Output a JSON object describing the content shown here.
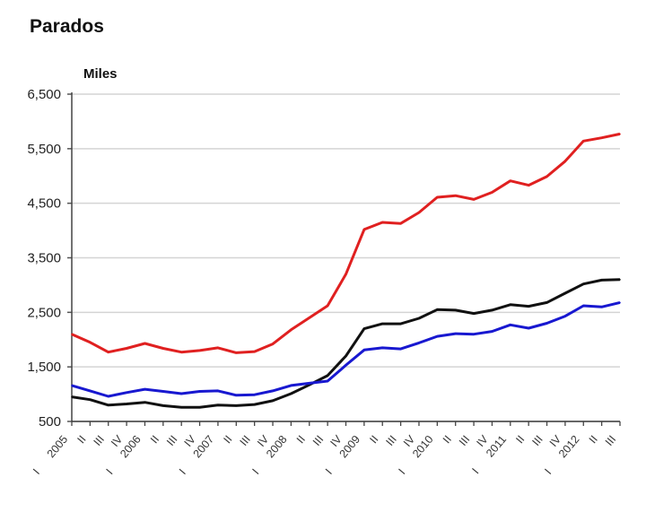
{
  "chart_data": {
    "type": "line",
    "title": "Parados",
    "ylabel": "Miles",
    "xlabel": "",
    "ylim": [
      500,
      6500
    ],
    "yticks": [
      "6,500",
      "5,500",
      "4,500",
      "3,500",
      "2,500",
      "1,500",
      "500"
    ],
    "ytick_values": [
      6500,
      5500,
      4500,
      3500,
      2500,
      1500,
      500
    ],
    "grid": true,
    "legend": "none",
    "x": [
      "I 2005",
      "II",
      "III",
      "IV",
      "I 2006",
      "II",
      "III",
      "IV",
      "I 2007",
      "II",
      "III",
      "IV",
      "I 2008",
      "II",
      "III",
      "IV",
      "I 2009",
      "II",
      "III",
      "IV",
      "I 2010",
      "II",
      "III",
      "IV",
      "I 2011",
      "II",
      "III",
      "IV",
      "I 2012",
      "II",
      "III"
    ],
    "x_labels": [
      {
        "quarter": "I",
        "year": "2005"
      },
      {
        "quarter": "II"
      },
      {
        "quarter": "III"
      },
      {
        "quarter": "IV"
      },
      {
        "quarter": "I",
        "year": "2006"
      },
      {
        "quarter": "II"
      },
      {
        "quarter": "III"
      },
      {
        "quarter": "IV"
      },
      {
        "quarter": "I",
        "year": "2007"
      },
      {
        "quarter": "II"
      },
      {
        "quarter": "III"
      },
      {
        "quarter": "IV"
      },
      {
        "quarter": "I",
        "year": "2008"
      },
      {
        "quarter": "II"
      },
      {
        "quarter": "III"
      },
      {
        "quarter": "IV"
      },
      {
        "quarter": "I",
        "year": "2009"
      },
      {
        "quarter": "II"
      },
      {
        "quarter": "III"
      },
      {
        "quarter": "IV"
      },
      {
        "quarter": "I",
        "year": "2010"
      },
      {
        "quarter": "II"
      },
      {
        "quarter": "III"
      },
      {
        "quarter": "IV"
      },
      {
        "quarter": "I",
        "year": "2011"
      },
      {
        "quarter": "II"
      },
      {
        "quarter": "III"
      },
      {
        "quarter": "IV"
      },
      {
        "quarter": "I",
        "year": "2012"
      },
      {
        "quarter": "II"
      },
      {
        "quarter": "III"
      }
    ],
    "series": [
      {
        "name": "red-series",
        "color": "#e02020",
        "values": [
          2100,
          1950,
          1770,
          1840,
          1930,
          1840,
          1770,
          1800,
          1850,
          1760,
          1780,
          1920,
          2180,
          2400,
          2620,
          3200,
          4020,
          4150,
          4130,
          4330,
          4610,
          4640,
          4570,
          4700,
          4910,
          4830,
          4990,
          5270,
          5640,
          5700,
          5770
        ]
      },
      {
        "name": "black-series",
        "color": "#111111",
        "values": [
          950,
          900,
          800,
          820,
          850,
          790,
          760,
          760,
          800,
          790,
          810,
          880,
          1010,
          1170,
          1340,
          1700,
          2200,
          2290,
          2290,
          2390,
          2550,
          2540,
          2480,
          2540,
          2640,
          2610,
          2680,
          2850,
          3020,
          3090,
          3100
        ]
      },
      {
        "name": "blue-series",
        "color": "#1818d0",
        "values": [
          1160,
          1060,
          960,
          1030,
          1090,
          1050,
          1010,
          1050,
          1060,
          980,
          990,
          1060,
          1160,
          1200,
          1240,
          1530,
          1810,
          1850,
          1830,
          1940,
          2060,
          2110,
          2100,
          2150,
          2270,
          2210,
          2300,
          2430,
          2620,
          2600,
          2680
        ]
      }
    ]
  }
}
